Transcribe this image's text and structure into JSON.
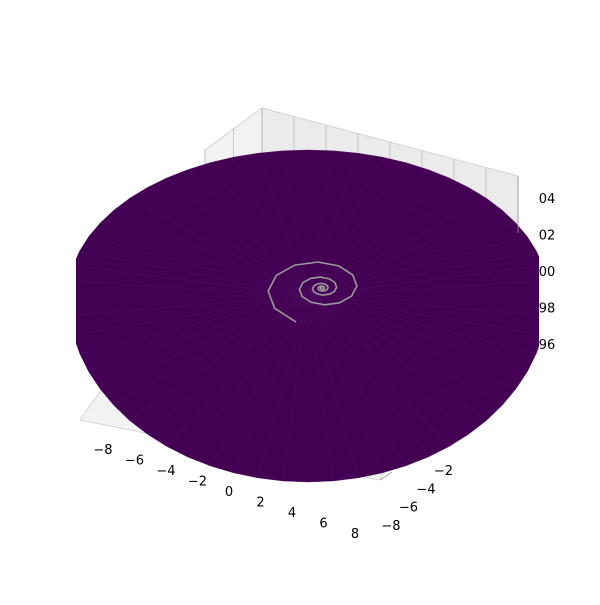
{
  "chart_data": {
    "type": "surface",
    "projection": "3d",
    "surface_color": "#440154",
    "line_color": "#999999",
    "pane_color": "#f2f2f2",
    "grid_color": "#b0b0b0",
    "x_ticks": [
      "−8",
      "−6",
      "−4",
      "−2",
      "0",
      "2",
      "4",
      "6",
      "8"
    ],
    "y_ticks": [
      "−8",
      "−6",
      "−4",
      "−2"
    ],
    "z_ticks": [
      "04",
      "02",
      "00",
      "98",
      "96"
    ],
    "surface": {
      "kind": "polar-disc",
      "radius": 8,
      "angular_segments": 60,
      "z": 1.0
    },
    "spiral": {
      "description_free_points": true,
      "turns": 4.5,
      "r_start": 5.0,
      "r_end": 0.1
    }
  }
}
